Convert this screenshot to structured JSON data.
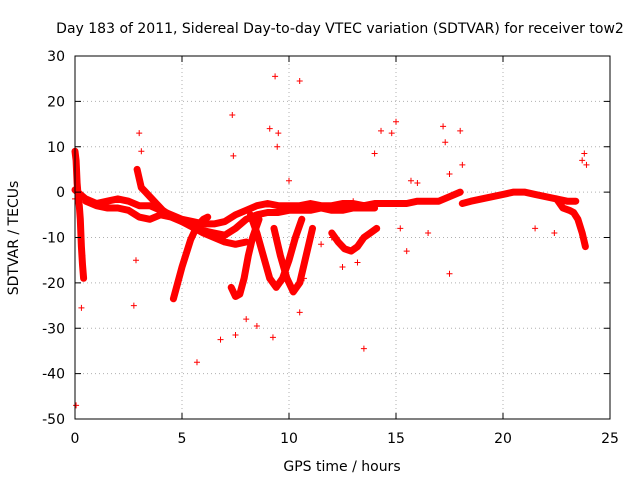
{
  "chart_data": {
    "type": "scatter",
    "title": "Day 183 of 2011, Sidereal Day-to-day VTEC variation (SDTVAR) for receiver tow2",
    "xlabel": "GPS time / hours",
    "ylabel": "SDTVAR / TECUs",
    "xlim": [
      0,
      25
    ],
    "ylim": [
      -50,
      30
    ],
    "xticks": [
      0,
      5,
      10,
      15,
      20,
      25
    ],
    "yticks": [
      -50,
      -40,
      -30,
      -20,
      -10,
      0,
      10,
      20,
      30
    ],
    "grid": true,
    "marker": "+",
    "color": "#ff0000",
    "band_series": [
      {
        "name": "main-trace-a",
        "x": [
          0.0,
          0.5,
          1.0,
          1.5,
          2.0,
          2.5,
          3.0,
          3.5,
          4.0,
          4.5,
          5.0,
          5.5,
          6.0,
          6.5,
          7.0,
          7.5,
          8.0,
          8.5,
          9.0,
          9.5,
          10.0,
          10.5,
          11.0,
          11.5,
          12.0,
          12.5,
          13.0,
          13.5,
          14.0,
          14.5,
          15.0,
          15.5,
          16.0,
          16.5,
          17.0,
          17.5,
          18.0
        ],
        "y": [
          0.5,
          -1.5,
          -2.5,
          -2.0,
          -1.5,
          -2.0,
          -3.0,
          -3.0,
          -4.0,
          -5.0,
          -6.0,
          -6.5,
          -7.0,
          -7.0,
          -6.5,
          -5.0,
          -4.0,
          -3.0,
          -2.5,
          -3.0,
          -3.0,
          -3.0,
          -2.5,
          -3.0,
          -3.0,
          -2.5,
          -2.5,
          -3.0,
          -2.5,
          -2.5,
          -2.5,
          -2.5,
          -2.0,
          -2.0,
          -2.0,
          -1.0,
          0.0
        ]
      },
      {
        "name": "main-trace-b",
        "x": [
          0.5,
          1.0,
          1.5,
          2.0,
          2.5,
          3.0,
          3.5,
          4.0,
          4.5,
          5.0,
          5.5,
          6.0,
          6.5,
          7.0,
          7.5,
          8.0,
          8.5,
          9.0,
          9.5,
          10.0,
          10.5,
          11.0,
          11.5,
          12.0,
          12.5,
          13.0,
          13.5,
          14.0
        ],
        "y": [
          -2.0,
          -3.0,
          -3.5,
          -3.5,
          -4.0,
          -5.5,
          -6.0,
          -5.0,
          -5.5,
          -6.5,
          -7.5,
          -8.5,
          -9.0,
          -9.5,
          -8.0,
          -6.0,
          -5.0,
          -4.5,
          -4.5,
          -4.0,
          -4.0,
          -4.0,
          -3.5,
          -4.0,
          -4.0,
          -3.5,
          -3.5,
          -3.5
        ]
      },
      {
        "name": "arc-3h",
        "x": [
          2.9,
          3.0,
          3.1,
          3.3,
          3.5,
          3.8,
          4.1,
          4.4,
          4.8,
          5.2,
          5.6,
          6.0,
          6.5,
          7.0,
          7.5,
          8.0
        ],
        "y": [
          5.0,
          3.0,
          1.0,
          0.0,
          -1.0,
          -2.5,
          -4.0,
          -5.0,
          -6.0,
          -7.0,
          -8.0,
          -9.0,
          -10.0,
          -11.0,
          -11.5,
          -11.0
        ]
      },
      {
        "name": "arc-4.5h",
        "x": [
          4.6,
          4.8,
          5.0,
          5.2,
          5.4,
          5.6,
          5.8,
          6.0,
          6.2
        ],
        "y": [
          -23.5,
          -20.0,
          -16.5,
          -13.5,
          -10.5,
          -8.5,
          -7.0,
          -6.0,
          -5.5
        ]
      },
      {
        "name": "arc-7h",
        "x": [
          7.3,
          7.5,
          7.7,
          7.9,
          8.1,
          8.3,
          8.6
        ],
        "y": [
          -21.0,
          -23.0,
          -22.5,
          -19.0,
          -14.0,
          -10.0,
          -6.0
        ]
      },
      {
        "name": "arc-9h",
        "x": [
          8.2,
          8.5,
          8.8,
          9.1,
          9.4,
          9.7,
          10.0,
          10.3,
          10.6
        ],
        "y": [
          -5.0,
          -9.0,
          -14.0,
          -19.0,
          -21.0,
          -19.0,
          -15.0,
          -10.0,
          -6.0
        ]
      },
      {
        "name": "arc-10.5h",
        "x": [
          9.3,
          9.6,
          9.9,
          10.2,
          10.5,
          10.8,
          11.1
        ],
        "y": [
          -8.0,
          -14.0,
          -19.0,
          -22.0,
          -20.0,
          -14.0,
          -8.0
        ]
      },
      {
        "name": "afternoon-trace",
        "x": [
          18.1,
          18.5,
          19.0,
          19.5,
          20.0,
          20.5,
          21.0,
          21.5,
          22.0,
          22.5,
          23.0,
          23.4
        ],
        "y": [
          -2.5,
          -2.0,
          -1.5,
          -1.0,
          -0.5,
          0.0,
          0.0,
          -0.5,
          -1.0,
          -1.5,
          -2.0,
          -2.0
        ]
      },
      {
        "name": "end-arc",
        "x": [
          22.5,
          22.8,
          23.1,
          23.3,
          23.5,
          23.7,
          23.85
        ],
        "y": [
          -1.5,
          -3.5,
          -4.0,
          -4.5,
          -6.0,
          -9.0,
          -12.0
        ]
      },
      {
        "name": "start-spikes",
        "x": [
          0.0,
          0.05,
          0.1,
          0.15,
          0.2,
          0.25,
          0.3,
          0.35,
          0.4
        ],
        "y": [
          9.0,
          7.0,
          2.0,
          -1.0,
          -3.0,
          -6.0,
          -12.0,
          -16.0,
          -19.0
        ]
      },
      {
        "name": "midday-lower",
        "x": [
          12.0,
          12.3,
          12.6,
          12.9,
          13.2,
          13.5,
          13.8,
          14.1
        ],
        "y": [
          -9.0,
          -11.0,
          -12.5,
          -13.0,
          -12.0,
          -10.0,
          -9.0,
          -8.0
        ]
      }
    ],
    "outliers": {
      "x": [
        0.05,
        0.3,
        0.35,
        2.75,
        2.85,
        5.7,
        6.8,
        7.35,
        7.4,
        7.5,
        9.1,
        9.25,
        9.35,
        9.45,
        9.5,
        10.0,
        10.5,
        10.5,
        10.7,
        12.0,
        12.5,
        13.5,
        13.0,
        14.0,
        14.3,
        14.8,
        15.0,
        15.2,
        15.5,
        16.0,
        16.5,
        17.2,
        17.3,
        17.5,
        17.5,
        18.0,
        18.1,
        23.8,
        23.7,
        23.9,
        21.5,
        22.4,
        0.0,
        3.0,
        3.1,
        8.0,
        8.5,
        11.5,
        13.2,
        13.8,
        15.7
      ],
      "y": [
        -47.0,
        -25.5,
        -14.0,
        -25.0,
        -15.0,
        -37.5,
        -32.5,
        17.0,
        8.0,
        -31.5,
        14.0,
        -32.0,
        25.5,
        10.0,
        13.0,
        2.5,
        24.5,
        -26.5,
        -19.0,
        -10.0,
        -16.5,
        -34.5,
        -2.0,
        8.5,
        13.5,
        13.0,
        15.5,
        -8.0,
        -13.0,
        2.0,
        -9.0,
        14.5,
        11.0,
        4.0,
        -18.0,
        13.5,
        6.0,
        8.5,
        7.0,
        6.0,
        -8.0,
        -9.0,
        -1.5,
        13.0,
        9.0,
        -28.0,
        -29.5,
        -11.5,
        -15.5,
        -3.0,
        2.5
      ]
    }
  }
}
